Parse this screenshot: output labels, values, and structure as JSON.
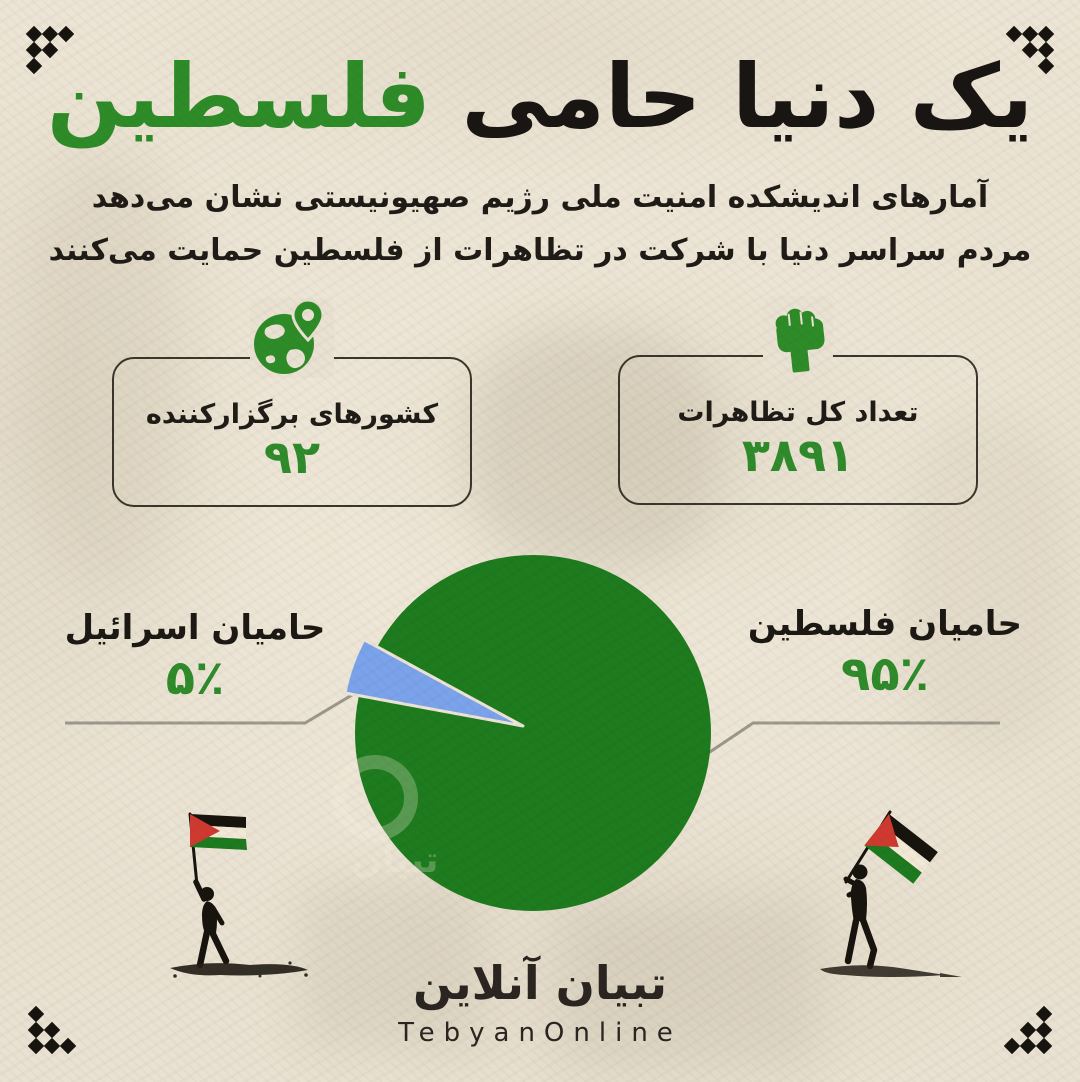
{
  "colors": {
    "background": "#e9e1d1",
    "accent_green": "#2e8c28",
    "pie_green": "#1e7b1e",
    "pie_blue": "#7ba3eb",
    "text_dark": "#1f1b16",
    "leader_line": "#9d988c",
    "flag_red": "#cf3a30",
    "silhouette": "#17130d"
  },
  "header": {
    "title_black": "یک دنیا حامی",
    "title_green": "فلسطین",
    "subtitle_line1": "آمارهای اندیشکده امنیت ملی رژیم صهیونیستی نشان می‌دهد",
    "subtitle_line2": "مردم سراسر دنیا با شرکت در تظاهرات از فلسطین حمایت می‌کنند"
  },
  "stats": {
    "countries": {
      "icon": "globe-pin-icon",
      "label": "کشورهای برگزارکننده",
      "value": "۹۲"
    },
    "protests": {
      "icon": "fist-icon",
      "label": "تعداد کل تظاهرات",
      "value": "۳۸۹۱"
    }
  },
  "chart_data": {
    "type": "pie",
    "title": "",
    "legend_position": "side-labels",
    "rotation_start_deg": 151.5,
    "slices": [
      {
        "label": "حامیان فلسطین",
        "value": 95,
        "display": "۹۵٪",
        "color": "#1e7b1e"
      },
      {
        "label": "حامیان اسرائیل",
        "value": 5,
        "display": "۵٪",
        "color": "#7ba3eb"
      }
    ]
  },
  "watermark": {
    "text": "تبیان"
  },
  "footer": {
    "logo_fa": "تبیان آنلاین",
    "logo_en": "TebyanOnline"
  }
}
